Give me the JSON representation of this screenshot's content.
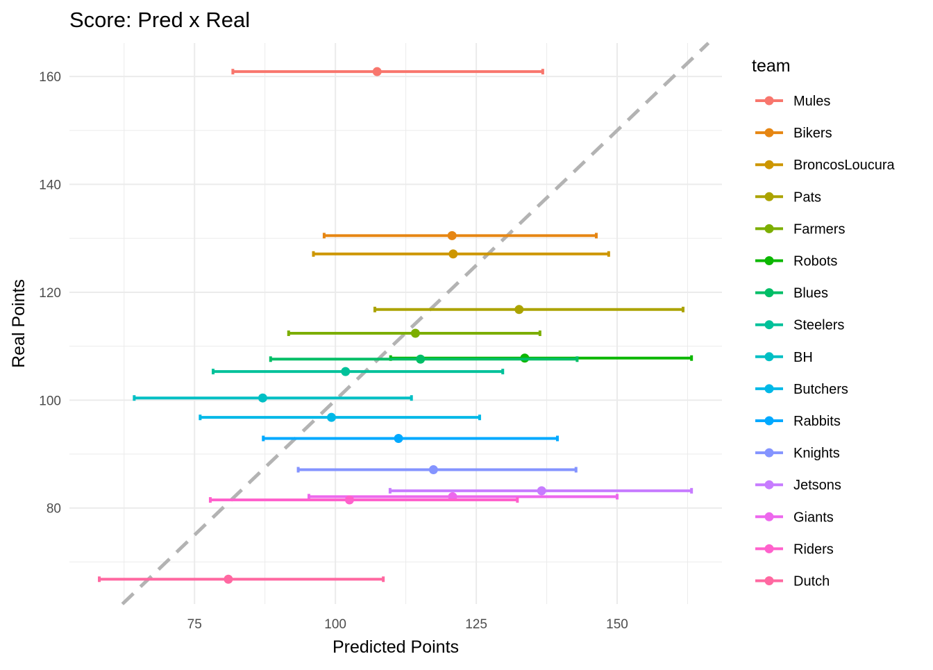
{
  "chart_data": {
    "type": "errorbar-scatter",
    "title": "Score: Pred x Real",
    "xlabel": "Predicted Points",
    "ylabel": "Real Points",
    "xlim": [
      52.8,
      168.6
    ],
    "ylim": [
      62.2,
      166.2
    ],
    "xticks": [
      75,
      100,
      125,
      150
    ],
    "yticks": [
      80,
      100,
      120,
      140,
      160
    ],
    "grid": true,
    "reference_line": {
      "type": "identity",
      "style": "dashed",
      "color": "#B3B3B3"
    },
    "legend": {
      "title": "team",
      "placement": "right"
    },
    "series": [
      {
        "name": "Mules",
        "color": "#F8766D",
        "x": 107.4,
        "y": 160.9,
        "xmin": 81.8,
        "xmax": 136.8
      },
      {
        "name": "Bikers",
        "color": "#E68613",
        "x": 120.7,
        "y": 130.5,
        "xmin": 98.0,
        "xmax": 146.3
      },
      {
        "name": "BroncosLoucura",
        "color": "#CD9600",
        "x": 120.9,
        "y": 127.1,
        "xmin": 96.1,
        "xmax": 148.5
      },
      {
        "name": "Pats",
        "color": "#ABA300",
        "x": 132.6,
        "y": 116.8,
        "xmin": 107.0,
        "xmax": 161.7
      },
      {
        "name": "Farmers",
        "color": "#7CAE00",
        "x": 114.2,
        "y": 112.4,
        "xmin": 91.7,
        "xmax": 136.3
      },
      {
        "name": "Robots",
        "color": "#0CB702",
        "x": 133.6,
        "y": 107.8,
        "xmin": 109.8,
        "xmax": 163.2
      },
      {
        "name": "Blues",
        "color": "#00BE67",
        "x": 115.1,
        "y": 107.6,
        "xmin": 88.5,
        "xmax": 142.9
      },
      {
        "name": "Steelers",
        "color": "#00C19A",
        "x": 101.8,
        "y": 105.3,
        "xmin": 78.3,
        "xmax": 129.7
      },
      {
        "name": "BH",
        "color": "#00BFC4",
        "x": 87.1,
        "y": 100.4,
        "xmin": 64.3,
        "xmax": 113.5
      },
      {
        "name": "Butchers",
        "color": "#00B8E7",
        "x": 99.3,
        "y": 96.8,
        "xmin": 76.0,
        "xmax": 125.6
      },
      {
        "name": "Rabbits",
        "color": "#00A9FF",
        "x": 111.2,
        "y": 92.9,
        "xmin": 87.2,
        "xmax": 139.4
      },
      {
        "name": "Knights",
        "color": "#8494FF",
        "x": 117.4,
        "y": 87.1,
        "xmin": 93.4,
        "xmax": 142.7
      },
      {
        "name": "Jetsons",
        "color": "#C77CFF",
        "x": 136.6,
        "y": 83.2,
        "xmin": 109.7,
        "xmax": 163.2
      },
      {
        "name": "Giants",
        "color": "#ED68ED",
        "x": 120.8,
        "y": 82.1,
        "xmin": 95.3,
        "xmax": 150.0
      },
      {
        "name": "Riders",
        "color": "#FF61CC",
        "x": 102.5,
        "y": 81.5,
        "xmin": 77.8,
        "xmax": 132.3
      },
      {
        "name": "Dutch",
        "color": "#FF68A1",
        "x": 81.0,
        "y": 66.8,
        "xmin": 58.1,
        "xmax": 108.5
      }
    ]
  }
}
